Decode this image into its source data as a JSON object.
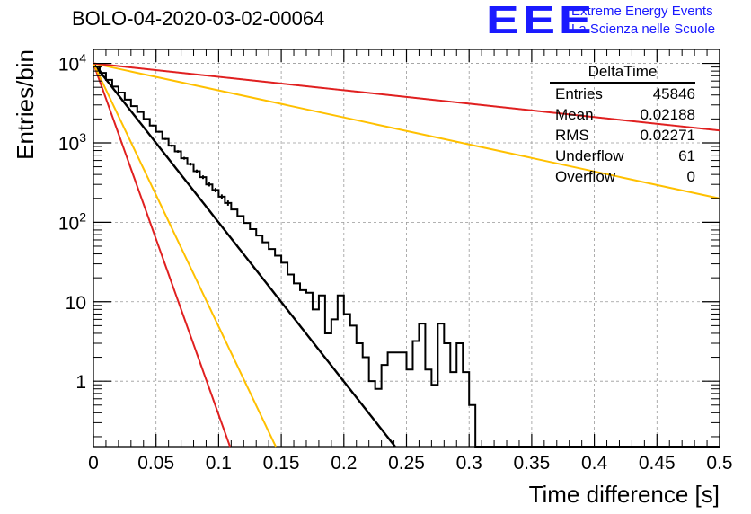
{
  "title": "BOLO-04-2020-03-02-00064",
  "logo": {
    "mark": "EEE",
    "line1": "Extreme Energy Events",
    "line2": "La Scienza nelle Scuole",
    "color": "#1a1aff"
  },
  "stats_box": {
    "name": "DeltaTime",
    "rows": [
      {
        "label": "Entries",
        "value": "45846"
      },
      {
        "label": "Mean",
        "value": "0.02188"
      },
      {
        "label": "RMS",
        "value": "0.02271"
      },
      {
        "label": "Underflow",
        "value": "61"
      },
      {
        "label": "Overflow",
        "value": "0"
      }
    ]
  },
  "chart_data": {
    "type": "histogram",
    "xlabel": "Time difference [s]",
    "ylabel": "Entries/bin",
    "xlim": [
      0,
      0.5
    ],
    "ylim": [
      0.15,
      15000
    ],
    "yscale": "log",
    "grid": true,
    "x_ticks": [
      {
        "v": 0,
        "label": "0"
      },
      {
        "v": 0.05,
        "label": "0.05"
      },
      {
        "v": 0.1,
        "label": "0.1"
      },
      {
        "v": 0.15,
        "label": "0.15"
      },
      {
        "v": 0.2,
        "label": "0.2"
      },
      {
        "v": 0.25,
        "label": "0.25"
      },
      {
        "v": 0.3,
        "label": "0.3"
      },
      {
        "v": 0.35,
        "label": "0.35"
      },
      {
        "v": 0.4,
        "label": "0.4"
      },
      {
        "v": 0.45,
        "label": "0.45"
      },
      {
        "v": 0.5,
        "label": "0.5"
      }
    ],
    "y_ticks": [
      {
        "v": 1,
        "base": "1",
        "exp": ""
      },
      {
        "v": 10,
        "base": "10",
        "exp": ""
      },
      {
        "v": 100,
        "base": "10",
        "exp": "2"
      },
      {
        "v": 1000,
        "base": "10",
        "exp": "3"
      },
      {
        "v": 10000,
        "base": "10",
        "exp": "4"
      }
    ],
    "histogram": {
      "bin_width": 0.005,
      "counts": [
        9000,
        7600,
        6200,
        5100,
        4300,
        3500,
        2900,
        2450,
        2000,
        1650,
        1380,
        1120,
        920,
        780,
        640,
        540,
        440,
        370,
        300,
        255,
        210,
        175,
        145,
        120,
        98,
        82,
        68,
        56,
        46,
        38,
        31,
        22,
        17,
        14,
        13,
        8,
        12,
        4,
        6,
        12,
        7,
        5,
        3,
        2,
        1,
        0.8,
        1.6,
        2.3,
        2.3,
        2.3,
        1.4,
        3.2,
        5.3,
        1.4,
        0.9,
        5.3,
        3.0,
        1.3,
        3.0,
        1.3,
        0.5,
        0,
        0,
        0,
        0,
        0,
        0,
        0,
        0,
        0,
        0,
        0,
        0,
        0,
        0,
        0,
        0,
        0,
        0,
        0,
        0,
        0,
        0,
        0,
        0,
        0,
        0,
        0,
        0,
        0,
        0,
        0,
        0,
        0,
        0,
        0,
        0,
        0,
        0,
        0
      ],
      "color": "#000000"
    },
    "fits": [
      {
        "name": "fit",
        "color": "#000000",
        "A": 10000,
        "tau": 0.02169
      },
      {
        "name": "fast red",
        "color": "#e02020",
        "A": 10000,
        "tau": 0.00982
      },
      {
        "name": "fast orange",
        "color": "#ffc000",
        "A": 10000,
        "tau": 0.01311
      },
      {
        "name": "slow orange",
        "color": "#ffc000",
        "A": 10000,
        "tau": 0.1277
      },
      {
        "name": "slow red",
        "color": "#e02020",
        "A": 10000,
        "tau": 0.2571
      }
    ]
  }
}
